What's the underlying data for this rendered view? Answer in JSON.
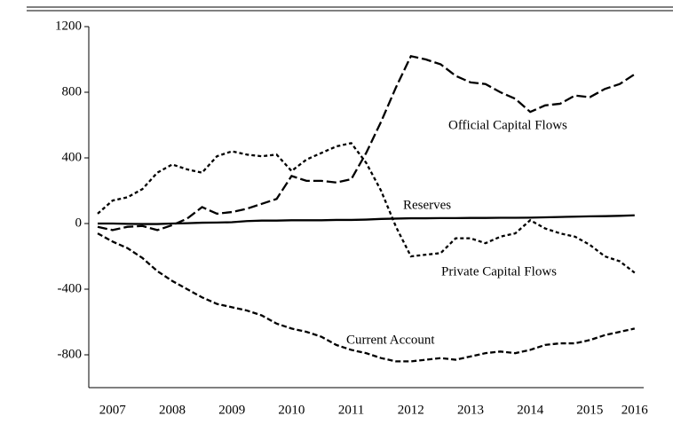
{
  "chart_data": {
    "type": "line",
    "categories": [
      null,
      "2007",
      null,
      null,
      null,
      "2008",
      null,
      null,
      null,
      "2009",
      null,
      null,
      null,
      "2010",
      null,
      null,
      null,
      "2011",
      null,
      null,
      null,
      "2012",
      null,
      null,
      null,
      "2013",
      null,
      null,
      null,
      "2014",
      null,
      null,
      null,
      "2015",
      null,
      null,
      "2016"
    ],
    "series": [
      {
        "name": "Official Capital Flows",
        "color": "#000000",
        "dash": "11,4",
        "values": [
          -20,
          -40,
          -20,
          -15,
          -40,
          -10,
          30,
          100,
          60,
          70,
          90,
          120,
          150,
          290,
          260,
          260,
          250,
          270,
          430,
          620,
          830,
          1020,
          1000,
          970,
          900,
          860,
          850,
          800,
          760,
          680,
          720,
          730,
          780,
          770,
          820,
          850,
          910
        ]
      },
      {
        "name": "Reserves",
        "color": "#000000",
        "dash": "none",
        "values": [
          0,
          0,
          -2,
          -3,
          -3,
          0,
          2,
          5,
          6,
          8,
          15,
          18,
          18,
          20,
          20,
          20,
          22,
          22,
          24,
          28,
          30,
          32,
          32,
          33,
          33,
          34,
          34,
          35,
          35,
          36,
          38,
          40,
          42,
          44,
          45,
          47,
          50
        ]
      },
      {
        "name": "Private Capital Flows",
        "color": "#000000",
        "dash": "4,3",
        "values": [
          60,
          140,
          160,
          210,
          310,
          360,
          330,
          310,
          410,
          440,
          420,
          410,
          420,
          320,
          390,
          430,
          470,
          490,
          370,
          200,
          -20,
          -200,
          -190,
          -180,
          -90,
          -90,
          -120,
          -80,
          -60,
          20,
          -30,
          -60,
          -80,
          -130,
          -200,
          -230,
          -300
        ]
      },
      {
        "name": "Current Account",
        "color": "#000000",
        "dash": "6,3",
        "values": [
          -60,
          -110,
          -150,
          -210,
          -290,
          -350,
          -400,
          -450,
          -490,
          -510,
          -530,
          -560,
          -610,
          -640,
          -660,
          -690,
          -740,
          -770,
          -790,
          -820,
          -840,
          -840,
          -830,
          -820,
          -830,
          -810,
          -790,
          -780,
          -790,
          -770,
          -740,
          -730,
          -730,
          -710,
          -680,
          -660,
          -640
        ]
      }
    ],
    "ylim": [
      -1000,
      1200
    ],
    "yticks": [
      -800,
      -400,
      0,
      400,
      800,
      1200
    ]
  }
}
